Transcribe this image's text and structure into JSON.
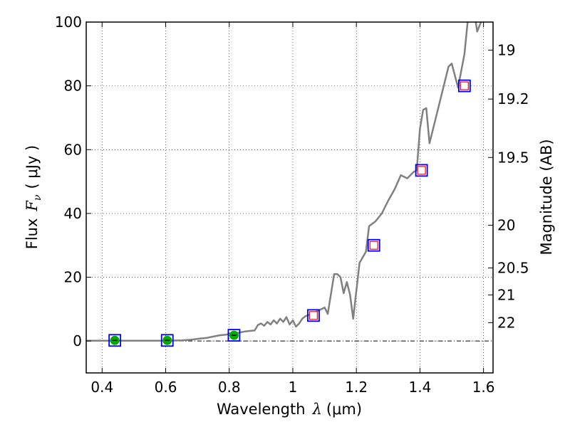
{
  "chart_data": {
    "type": "line",
    "xlabel": "Wavelength  λ (μm)",
    "xlabel_parts": {
      "text": "Wavelength",
      "symbol": "λ",
      "unit": "(μm)"
    },
    "ylabel": "Flux  Fν  ( μJy )",
    "ylabel_parts": {
      "text": "Flux",
      "symbol": "F",
      "subscript": "ν",
      "unit": "( μJy )"
    },
    "y2label": "Magnitude (AB)",
    "xlim": [
      0.35,
      1.63
    ],
    "ylim": [
      -10,
      100
    ],
    "grid": true,
    "x_ticks": [
      {
        "value": 0.4,
        "label": "0.4"
      },
      {
        "value": 0.6,
        "label": "0.6"
      },
      {
        "value": 0.8,
        "label": "0.8"
      },
      {
        "value": 1.0,
        "label": "1"
      },
      {
        "value": 1.2,
        "label": "1.2"
      },
      {
        "value": 1.4,
        "label": "1.4"
      },
      {
        "value": 1.6,
        "label": "1.6"
      }
    ],
    "y_ticks": [
      {
        "value": 0,
        "label": "0"
      },
      {
        "value": 20,
        "label": "20"
      },
      {
        "value": 40,
        "label": "40"
      },
      {
        "value": 60,
        "label": "60"
      },
      {
        "value": 80,
        "label": "80"
      },
      {
        "value": 100,
        "label": "100"
      }
    ],
    "y2_ticks": [
      {
        "value": 19,
        "label": "19"
      },
      {
        "value": 19.2,
        "label": "19.2"
      },
      {
        "value": 19.5,
        "label": "19.5"
      },
      {
        "value": 20,
        "label": "20"
      },
      {
        "value": 20.5,
        "label": "20.5"
      },
      {
        "value": 21,
        "label": "21"
      },
      {
        "value": 22,
        "label": "22"
      }
    ],
    "zero_line": 0,
    "colors": {
      "sed_line": "#808080",
      "model_square": "#0000ff",
      "photometry_square": "#ff0000",
      "detection_point": "#00aa00"
    },
    "series": [
      {
        "kind": "sed_line",
        "points": [
          [
            0.35,
            0.1
          ],
          [
            0.4,
            0.1
          ],
          [
            0.45,
            0.1
          ],
          [
            0.5,
            0.1
          ],
          [
            0.55,
            0.1
          ],
          [
            0.6,
            0.1
          ],
          [
            0.65,
            0.2
          ],
          [
            0.68,
            0.4
          ],
          [
            0.71,
            0.8
          ],
          [
            0.73,
            1.0
          ],
          [
            0.75,
            1.4
          ],
          [
            0.77,
            1.8
          ],
          [
            0.79,
            2.0
          ],
          [
            0.81,
            2.5
          ],
          [
            0.83,
            2.6
          ],
          [
            0.85,
            3.0
          ],
          [
            0.87,
            3.2
          ],
          [
            0.88,
            3.3
          ],
          [
            0.89,
            5.0
          ],
          [
            0.9,
            5.5
          ],
          [
            0.91,
            4.8
          ],
          [
            0.92,
            6.0
          ],
          [
            0.93,
            5.2
          ],
          [
            0.94,
            6.5
          ],
          [
            0.95,
            5.5
          ],
          [
            0.96,
            7.0
          ],
          [
            0.97,
            6.0
          ],
          [
            0.98,
            7.5
          ],
          [
            0.99,
            5.2
          ],
          [
            1.0,
            6.5
          ],
          [
            1.01,
            4.5
          ],
          [
            1.02,
            5.5
          ],
          [
            1.03,
            7.0
          ],
          [
            1.04,
            7.8
          ],
          [
            1.06,
            8.5
          ],
          [
            1.08,
            9.5
          ],
          [
            1.1,
            10.5
          ],
          [
            1.11,
            8.5
          ],
          [
            1.13,
            21.0
          ],
          [
            1.14,
            21.0
          ],
          [
            1.15,
            20.0
          ],
          [
            1.16,
            15.0
          ],
          [
            1.17,
            18.5
          ],
          [
            1.18,
            14.5
          ],
          [
            1.19,
            7.0
          ],
          [
            1.21,
            24.5
          ],
          [
            1.23,
            28.0
          ],
          [
            1.24,
            36.0
          ],
          [
            1.26,
            37.5
          ],
          [
            1.28,
            40.0
          ],
          [
            1.3,
            44.0
          ],
          [
            1.32,
            47.5
          ],
          [
            1.34,
            52.0
          ],
          [
            1.36,
            51.0
          ],
          [
            1.38,
            53.0
          ],
          [
            1.39,
            53.5
          ],
          [
            1.4,
            66.5
          ],
          [
            1.41,
            72.5
          ],
          [
            1.42,
            73.0
          ],
          [
            1.43,
            62.0
          ],
          [
            1.45,
            70.0
          ],
          [
            1.47,
            78.0
          ],
          [
            1.49,
            86.0
          ],
          [
            1.5,
            87.0
          ],
          [
            1.52,
            79.5
          ],
          [
            1.54,
            90.0
          ],
          [
            1.55,
            100.0
          ],
          [
            1.57,
            104.0
          ],
          [
            1.58,
            97.0
          ],
          [
            1.6,
            102.0
          ]
        ]
      },
      {
        "kind": "model_squares",
        "points": [
          [
            0.44,
            0.2
          ],
          [
            0.605,
            0.2
          ],
          [
            0.815,
            1.8
          ],
          [
            1.065,
            8.0
          ],
          [
            1.255,
            30.0
          ],
          [
            1.405,
            53.5
          ],
          [
            1.54,
            80.0
          ]
        ]
      },
      {
        "kind": "photometry_squares",
        "points": [
          [
            1.065,
            8.0
          ],
          [
            1.255,
            30.0
          ],
          [
            1.405,
            53.5
          ],
          [
            1.54,
            80.0
          ]
        ]
      },
      {
        "kind": "detection_points",
        "points": [
          [
            0.44,
            0.2
          ],
          [
            0.605,
            0.2
          ],
          [
            0.815,
            1.8
          ]
        ]
      }
    ]
  }
}
